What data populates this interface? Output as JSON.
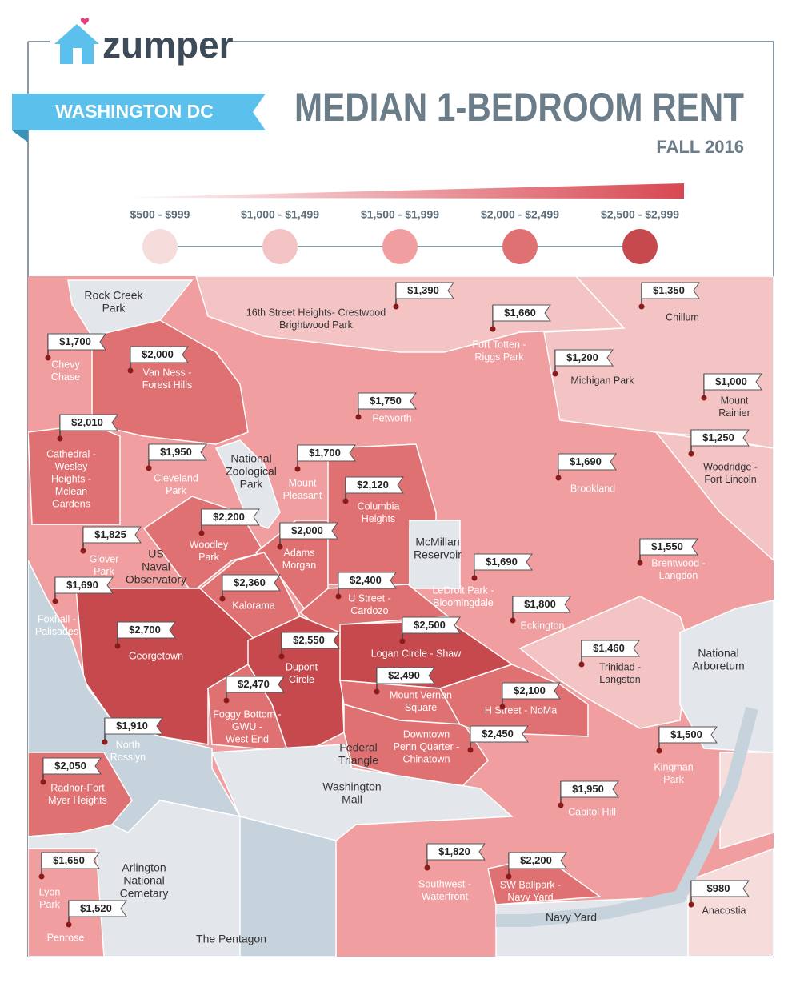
{
  "header": {
    "brand": "zumper",
    "city": "WASHINGTON DC",
    "title": "MEDIAN 1-BEDROOM RENT",
    "subtitle": "FALL 2016"
  },
  "legend": [
    "$500 - $999",
    "$1,000 - $1,499",
    "$1,500 - $1,999",
    "$2,000 - $2,499",
    "$2,500 - $2,999"
  ],
  "neighborhoods": [
    {
      "name": [
        "Chevy",
        "Chase"
      ],
      "rent": "$1,700"
    },
    {
      "name": [
        "Van Ness -",
        "Forest Hills"
      ],
      "rent": "$2,000"
    },
    {
      "name": [
        "Cathedral -",
        "Wesley",
        "Heights -",
        "Mclean",
        "Gardens"
      ],
      "rent": "$2,010"
    },
    {
      "name": [
        "Cleveland",
        "Park"
      ],
      "rent": "$1,950"
    },
    {
      "name": [
        "16th Street Heights- Crestwood",
        "Brightwood Park"
      ],
      "rent": "$1,390"
    },
    {
      "name": [
        "Fort Totten -",
        "Riggs Park"
      ],
      "rent": "$1,660"
    },
    {
      "name": [
        "Chillum"
      ],
      "rent": "$1,350"
    },
    {
      "name": [
        "Michigan  Park"
      ],
      "rent": "$1,200"
    },
    {
      "name": [
        "Mount",
        "Rainier"
      ],
      "rent": "$1,000"
    },
    {
      "name": [
        "Petworth"
      ],
      "rent": "$1,750"
    },
    {
      "name": [
        "Woodridge -",
        "Fort Lincoln"
      ],
      "rent": "$1,250"
    },
    {
      "name": [
        "Mount",
        "Pleasant"
      ],
      "rent": "$1,700"
    },
    {
      "name": [
        "Columbia",
        "Heights"
      ],
      "rent": "$2,120"
    },
    {
      "name": [
        "Brookland"
      ],
      "rent": "$1,690"
    },
    {
      "name": [
        "Woodley",
        "Park"
      ],
      "rent": "$2,200"
    },
    {
      "name": [
        "Glover",
        "Park"
      ],
      "rent": "$1,825"
    },
    {
      "name": [
        "Adams",
        "Morgan"
      ],
      "rent": "$2,000"
    },
    {
      "name": [
        "Brentwood -",
        "Langdon"
      ],
      "rent": "$1,550"
    },
    {
      "name": [
        "LeDroit Park -",
        "Bloomingdale"
      ],
      "rent": "$1,690"
    },
    {
      "name": [
        "Kalorama"
      ],
      "rent": "$2,360"
    },
    {
      "name": [
        "U Street -",
        "Cardozo"
      ],
      "rent": "$2,400"
    },
    {
      "name": [
        "Foxhall -",
        "Palisades"
      ],
      "rent": "$1,690"
    },
    {
      "name": [
        "Eckington"
      ],
      "rent": "$1,800"
    },
    {
      "name": [
        "Georgetown"
      ],
      "rent": "$2,700"
    },
    {
      "name": [
        "Logan Circle - Shaw"
      ],
      "rent": "$2,500"
    },
    {
      "name": [
        "Dupont",
        "Circle"
      ],
      "rent": "$2,550"
    },
    {
      "name": [
        "Trinidad -",
        "Langston"
      ],
      "rent": "$1,460"
    },
    {
      "name": [
        "Mount Vernon",
        "Square"
      ],
      "rent": "$2,490"
    },
    {
      "name": [
        "H Street - NoMa"
      ],
      "rent": "$2,100"
    },
    {
      "name": [
        "Foggy Bottom -",
        "GWU -",
        "West End"
      ],
      "rent": "$2,470"
    },
    {
      "name": [
        "North",
        "Rosslyn"
      ],
      "rent": "$1,910"
    },
    {
      "name": [
        "Downtown",
        "Penn Quarter -",
        "Chinatown"
      ],
      "rent": "$2,450"
    },
    {
      "name": [
        "Kingman",
        "Park"
      ],
      "rent": "$1,500"
    },
    {
      "name": [
        "Radnor-Fort",
        "Myer Heights"
      ],
      "rent": "$2,050"
    },
    {
      "name": [
        "Capitol Hill"
      ],
      "rent": "$1,950"
    },
    {
      "name": [
        "Lyon",
        "Park"
      ],
      "rent": "$1,650"
    },
    {
      "name": [
        "Southwest -",
        "Waterfront"
      ],
      "rent": "$1,820"
    },
    {
      "name": [
        "SW Ballpark -",
        "Navy Yard"
      ],
      "rent": "$2,200"
    },
    {
      "name": [
        "Anacostia"
      ],
      "rent": "$980"
    },
    {
      "name": [
        "Penrose"
      ],
      "rent": "$1,520"
    }
  ],
  "landmarks": [
    [
      "Rock Creek",
      "Park"
    ],
    [
      "National",
      "Zoological",
      "Park"
    ],
    [
      "US",
      "Naval",
      "Observatory"
    ],
    [
      "McMillan",
      "Reservoir"
    ],
    [
      "National",
      "Arboretum"
    ],
    [
      "Federal",
      "Triangle"
    ],
    [
      "Washington",
      "Mall"
    ],
    [
      "Arlington",
      "National",
      "Cemetary"
    ],
    [
      "The Pentagon"
    ],
    [
      "Navy Yard"
    ]
  ]
}
